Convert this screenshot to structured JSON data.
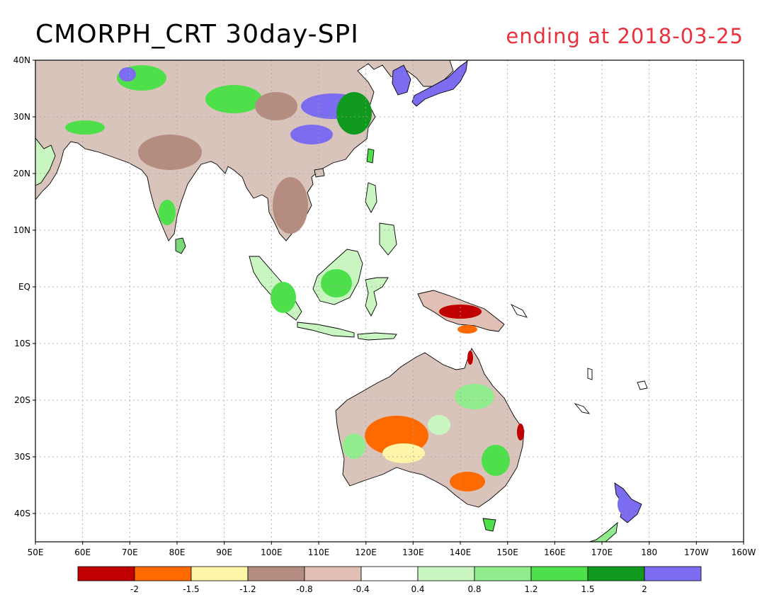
{
  "title": "CMORPH_CRT 30day-SPI",
  "subtitle": "ending at 2018-03-25",
  "map": {
    "lon_range": [
      50,
      200
    ],
    "lat_range": [
      -45,
      40
    ],
    "lon_ticks": [
      {
        "value": 50,
        "label": "50E"
      },
      {
        "value": 60,
        "label": "60E"
      },
      {
        "value": 70,
        "label": "70E"
      },
      {
        "value": 80,
        "label": "80E"
      },
      {
        "value": 90,
        "label": "90E"
      },
      {
        "value": 100,
        "label": "100E"
      },
      {
        "value": 110,
        "label": "110E"
      },
      {
        "value": 120,
        "label": "120E"
      },
      {
        "value": 130,
        "label": "130E"
      },
      {
        "value": 140,
        "label": "140E"
      },
      {
        "value": 150,
        "label": "150E"
      },
      {
        "value": 160,
        "label": "160E"
      },
      {
        "value": 170,
        "label": "170E"
      },
      {
        "value": 180,
        "label": "180"
      },
      {
        "value": 190,
        "label": "170W"
      },
      {
        "value": 200,
        "label": "160W"
      }
    ],
    "lat_ticks": [
      {
        "value": 40,
        "label": "40N"
      },
      {
        "value": 30,
        "label": "30N"
      },
      {
        "value": 20,
        "label": "20N"
      },
      {
        "value": 10,
        "label": "10N"
      },
      {
        "value": 0,
        "label": "EQ"
      },
      {
        "value": -10,
        "label": "10S"
      },
      {
        "value": -20,
        "label": "20S"
      },
      {
        "value": -30,
        "label": "30S"
      },
      {
        "value": -40,
        "label": "40S"
      }
    ],
    "grid": true
  },
  "legend": {
    "colors": [
      "#c00000",
      "#ff6a00",
      "#fff5a8",
      "#b58c80",
      "#e1bfb5",
      "#ffffff",
      "#c8f5c0",
      "#90ec8c",
      "#4de04a",
      "#0f9a1e",
      "#7b6cf0"
    ],
    "tick_labels": [
      "-2",
      "-1.5",
      "-1.2",
      "-0.8",
      "-0.4",
      "0.4",
      "0.8",
      "1.2",
      "1.5",
      "2"
    ]
  },
  "colors": {
    "title": "#000000",
    "subtitle": "#e8313a",
    "coast": "#000000",
    "grid": "#a0a0a0"
  }
}
